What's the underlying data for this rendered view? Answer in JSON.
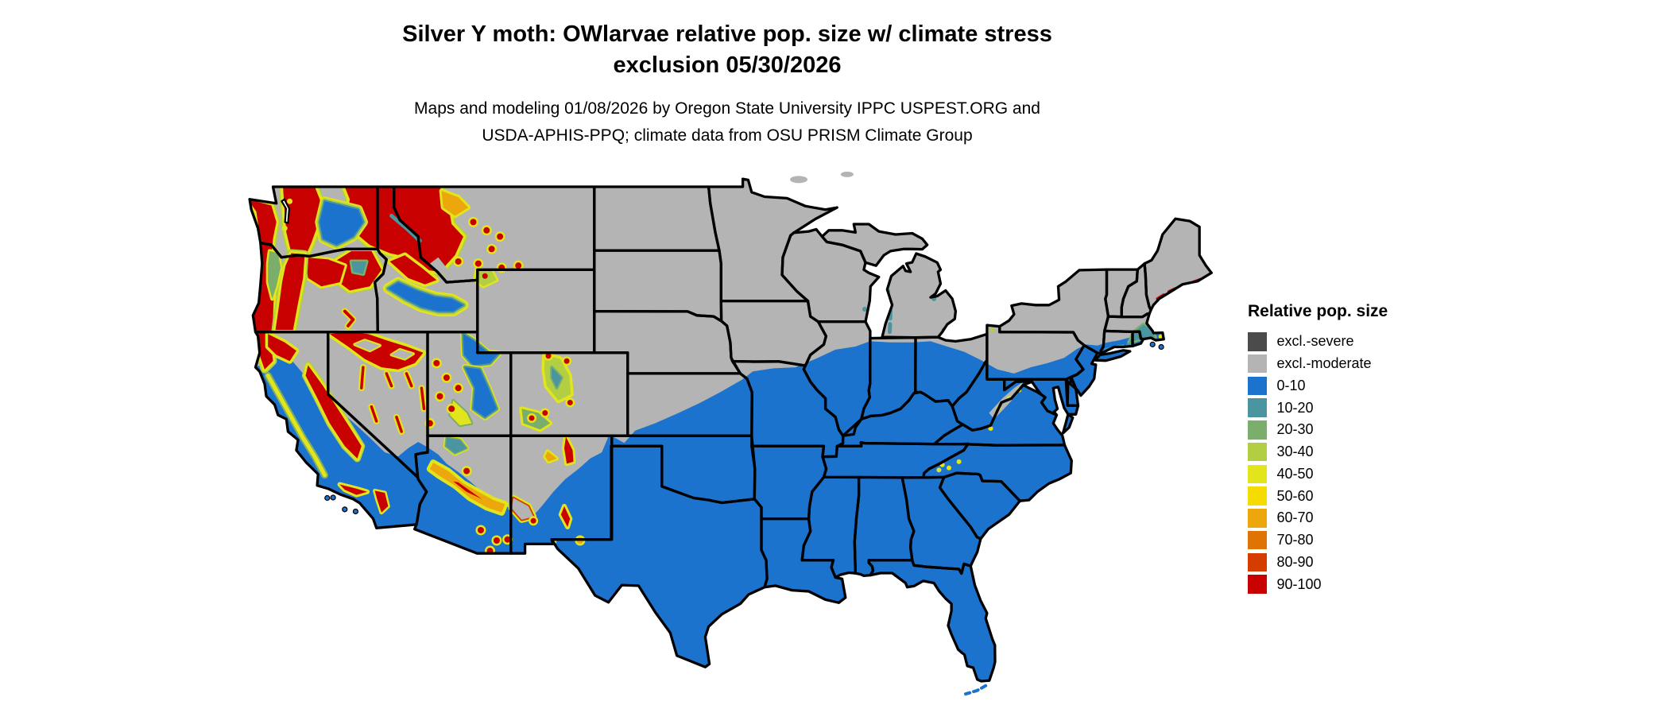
{
  "title": {
    "line1": "Silver Y moth: OWlarvae relative pop. size w/ climate stress",
    "line2": "exclusion 05/30/2026"
  },
  "subtitle": {
    "line1": "Maps and modeling 01/08/2026 by Oregon State University IPPC USPEST.ORG and",
    "line2": "USDA-APHIS-PPQ; climate data from OSU PRISM Climate Group"
  },
  "legend": {
    "title": "Relative pop. size",
    "items": [
      {
        "label": "excl.-severe",
        "color": "#4b4b4b"
      },
      {
        "label": "excl.-moderate",
        "color": "#b4b4b4"
      },
      {
        "label": "0-10",
        "color": "#1b73cd"
      },
      {
        "label": "10-20",
        "color": "#4a95a0"
      },
      {
        "label": "20-30",
        "color": "#7bad6b"
      },
      {
        "label": "30-40",
        "color": "#b2cf44"
      },
      {
        "label": "40-50",
        "color": "#e2e41c"
      },
      {
        "label": "50-60",
        "color": "#f4dc00"
      },
      {
        "label": "60-70",
        "color": "#eba70b"
      },
      {
        "label": "70-80",
        "color": "#df7303"
      },
      {
        "label": "80-90",
        "color": "#d43c00"
      },
      {
        "label": "90-100",
        "color": "#c90000"
      }
    ]
  },
  "map": {
    "base_fill": "#1b73cd",
    "exclusion_fill": "#b4b4b4",
    "border_color": "#000000",
    "background": "#ffffff"
  }
}
